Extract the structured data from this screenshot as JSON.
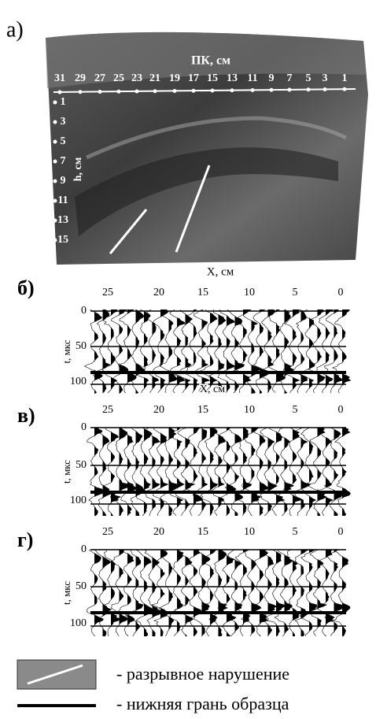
{
  "photo": {
    "label": "а)",
    "pk_title": "ПК, см",
    "pk_labels": [
      "31",
      "29",
      "27",
      "25",
      "23",
      "21",
      "19",
      "17",
      "15",
      "13",
      "11",
      "9",
      "7",
      "5",
      "3",
      "1"
    ],
    "h_title": "h, см",
    "h_labels": [
      "1",
      "3",
      "5",
      "7",
      "9",
      "11",
      "13",
      "15"
    ],
    "x_title": "X, см"
  },
  "panels": [
    {
      "label": "б)",
      "x_ticks": [
        "25",
        "20",
        "15",
        "10",
        "5",
        "0"
      ],
      "y_ticks": [
        "0",
        "50",
        "100"
      ],
      "y_title": "t, мкс",
      "x_title": "X, см"
    },
    {
      "label": "в)",
      "x_ticks": [
        "25",
        "20",
        "15",
        "10",
        "5",
        "0"
      ],
      "y_ticks": [
        "0",
        "50",
        "100"
      ],
      "y_title": "t, мкс"
    },
    {
      "label": "г)",
      "x_ticks": [
        "25",
        "20",
        "15",
        "10",
        "5",
        "0"
      ],
      "y_ticks": [
        "0",
        "50",
        "100"
      ],
      "y_title": "t, мкс"
    }
  ],
  "legend": {
    "fault": "- разрывное нарушение",
    "bottom": "- нижняя грань образца"
  }
}
